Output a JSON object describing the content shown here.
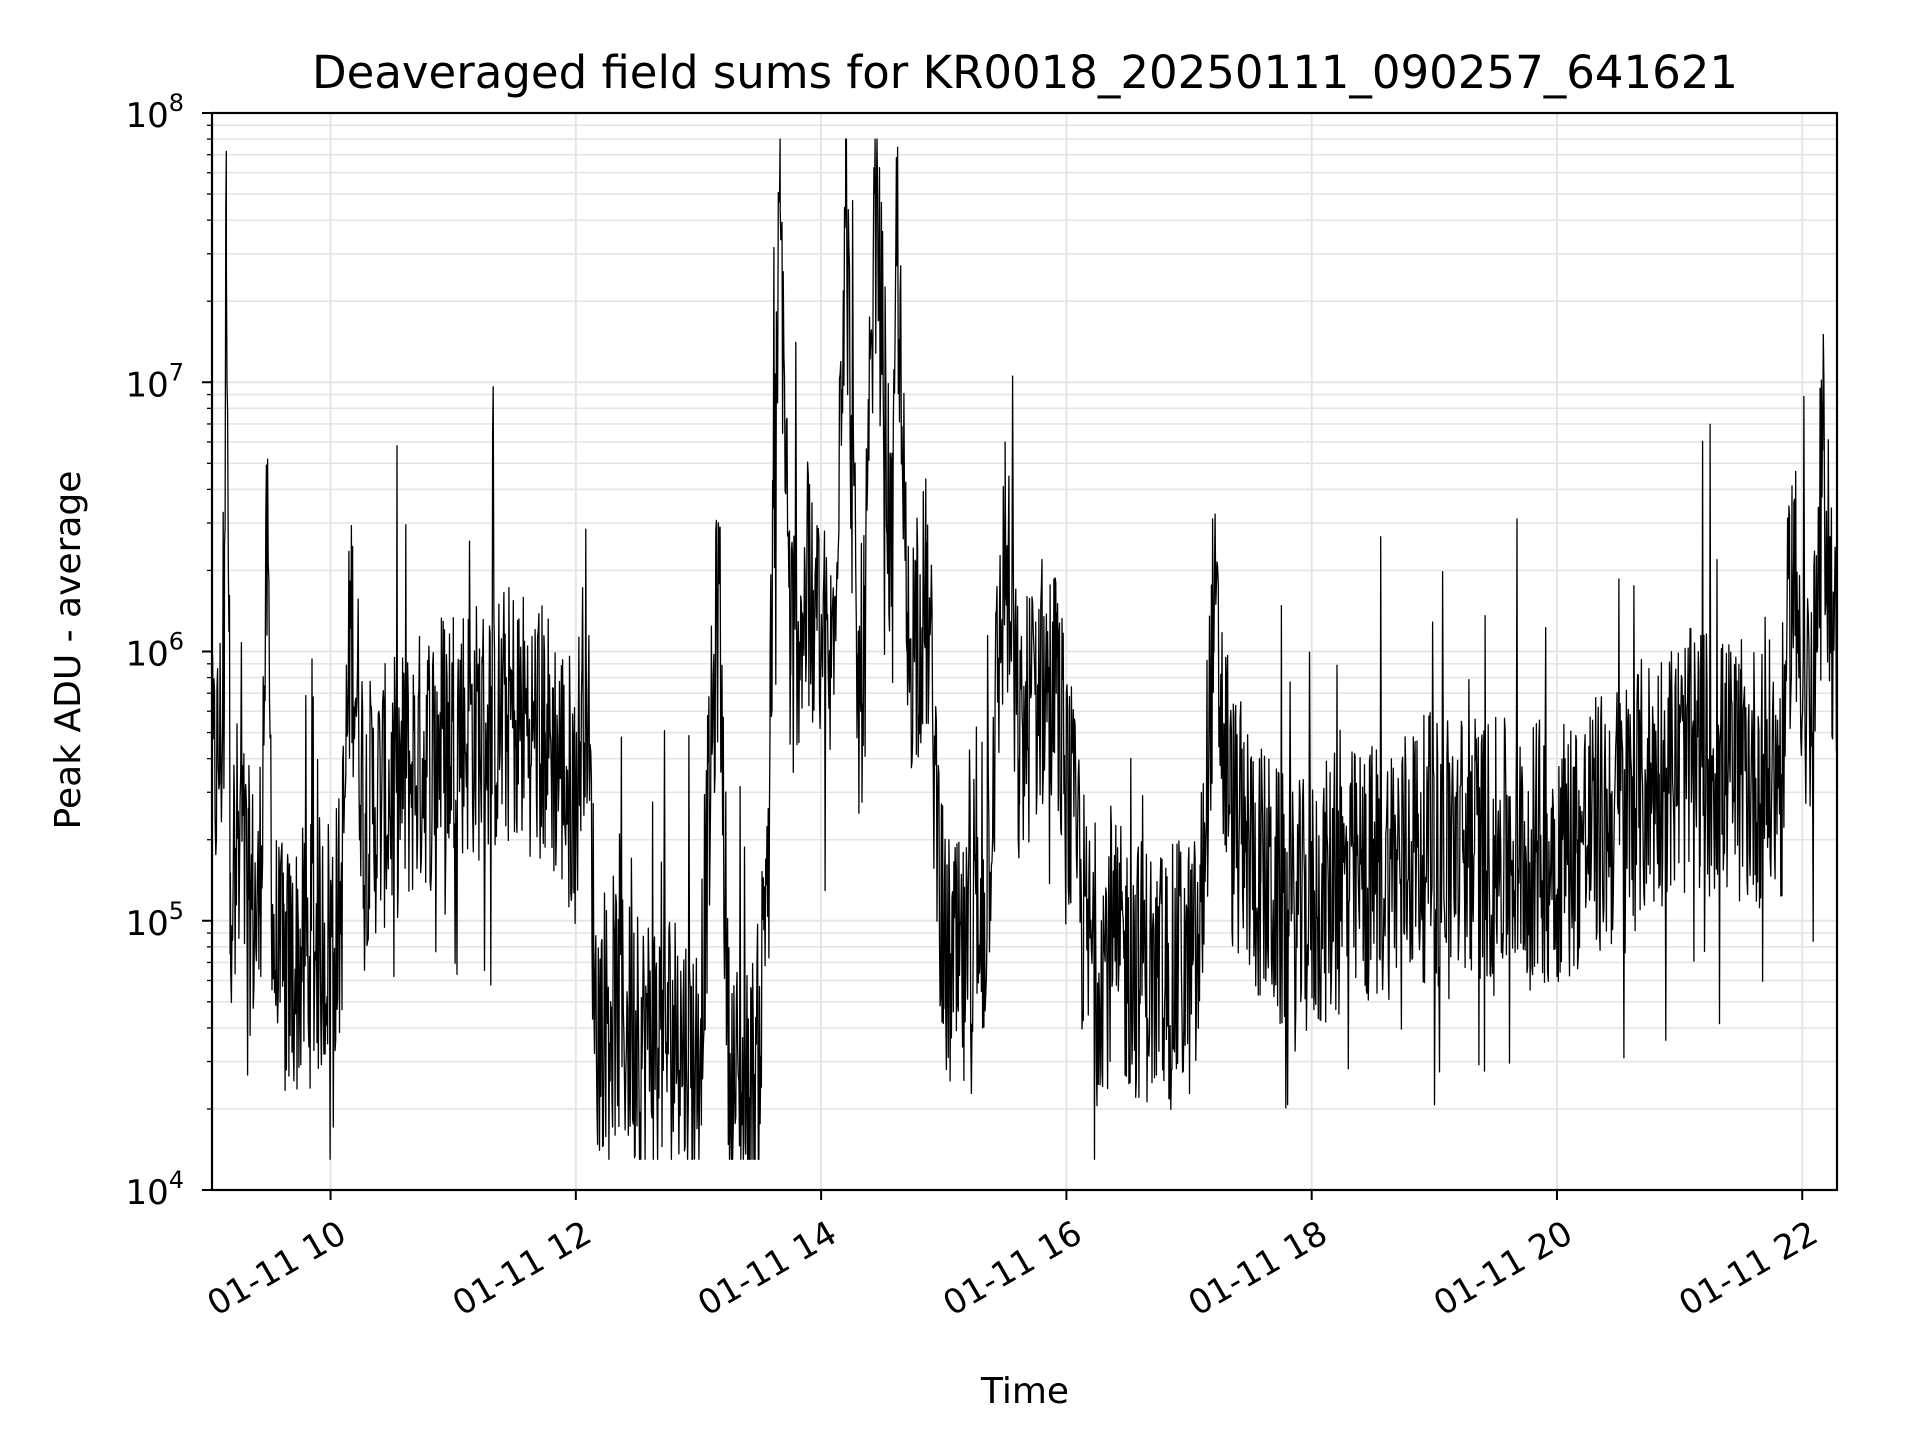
{
  "chart_data": {
    "type": "line",
    "title": "Deaveraged field sums for KR0018_20250111_090257_641621",
    "xlabel": "Time",
    "ylabel": "Peak ADU - average",
    "yscale": "log",
    "ylim": [
      10000,
      100000000
    ],
    "xlim": [
      "2025-01-11 09:02",
      "2025-01-11 22:17"
    ],
    "grid": true,
    "line_color": "#000000",
    "grid_color": "#e5e5e5",
    "x_ticks": [
      {
        "value": "2025-01-11 10:00",
        "label": "01-11 10"
      },
      {
        "value": "2025-01-11 12:00",
        "label": "01-11 12"
      },
      {
        "value": "2025-01-11 14:00",
        "label": "01-11 14"
      },
      {
        "value": "2025-01-11 16:00",
        "label": "01-11 16"
      },
      {
        "value": "2025-01-11 18:00",
        "label": "01-11 18"
      },
      {
        "value": "2025-01-11 20:00",
        "label": "01-11 20"
      },
      {
        "value": "2025-01-11 22:00",
        "label": "01-11 22"
      }
    ],
    "y_ticks": [
      {
        "value": 10000,
        "base": "10",
        "exp": "4"
      },
      {
        "value": 100000,
        "base": "10",
        "exp": "5"
      },
      {
        "value": 1000000,
        "base": "10",
        "exp": "6"
      },
      {
        "value": 10000000,
        "base": "10",
        "exp": "7"
      },
      {
        "value": 100000000,
        "base": "10",
        "exp": "8"
      }
    ],
    "series": [
      {
        "x": [
          "2025-01-11 09:02",
          "2025-01-11 09:05",
          "2025-01-11 09:08",
          "2025-01-11 09:09",
          "2025-01-11 09:11",
          "2025-01-11 09:15",
          "2025-01-11 09:20",
          "2025-01-11 09:25",
          "2025-01-11 09:29",
          "2025-01-11 09:32",
          "2025-01-11 09:37",
          "2025-01-11 09:45",
          "2025-01-11 09:55",
          "2025-01-11 10:05",
          "2025-01-11 10:10",
          "2025-01-11 10:17",
          "2025-01-11 10:30",
          "2025-01-11 10:45",
          "2025-01-11 11:00",
          "2025-01-11 11:15",
          "2025-01-11 11:30",
          "2025-01-11 11:45",
          "2025-01-11 12:00",
          "2025-01-11 12:05",
          "2025-01-11 12:10",
          "2025-01-11 12:17",
          "2025-01-11 12:30",
          "2025-01-11 12:45",
          "2025-01-11 13:00",
          "2025-01-11 13:10",
          "2025-01-11 13:15",
          "2025-01-11 13:25",
          "2025-01-11 13:30",
          "2025-01-11 13:35",
          "2025-01-11 13:40",
          "2025-01-11 13:45",
          "2025-01-11 13:50",
          "2025-01-11 13:58",
          "2025-01-11 14:05",
          "2025-01-11 14:12",
          "2025-01-11 14:18",
          "2025-01-11 14:21",
          "2025-01-11 14:27",
          "2025-01-11 14:35",
          "2025-01-11 14:37",
          "2025-01-11 14:42",
          "2025-01-11 14:52",
          "2025-01-11 15:00",
          "2025-01-11 15:10",
          "2025-01-11 15:20",
          "2025-01-11 15:30",
          "2025-01-11 15:37",
          "2025-01-11 15:45",
          "2025-01-11 15:55",
          "2025-01-11 16:10",
          "2025-01-11 16:30",
          "2025-01-11 16:50",
          "2025-01-11 17:05",
          "2025-01-11 17:12",
          "2025-01-11 17:20",
          "2025-01-11 17:35",
          "2025-01-11 17:50",
          "2025-01-11 18:10",
          "2025-01-11 18:30",
          "2025-01-11 18:50",
          "2025-01-11 19:10",
          "2025-01-11 19:30",
          "2025-01-11 19:50",
          "2025-01-11 20:10",
          "2025-01-11 20:30",
          "2025-01-11 20:50",
          "2025-01-11 21:10",
          "2025-01-11 21:30",
          "2025-01-11 21:50",
          "2025-01-11 21:55",
          "2025-01-11 22:05",
          "2025-01-11 22:10",
          "2025-01-11 22:17"
        ],
        "y": [
          300000,
          400000,
          600000,
          72000000,
          150000,
          200000,
          120000,
          100000,
          2200000,
          80000,
          60000,
          70000,
          80000,
          100000,
          1400000,
          250000,
          300000,
          400000,
          550000,
          500000,
          600000,
          500000,
          300000,
          1000000,
          40000,
          50000,
          35000,
          40000,
          30000,
          1800000,
          25000,
          22000,
          35000,
          500000,
          44000000,
          1000000,
          1500000,
          1200000,
          800000,
          47000000,
          600000,
          1000000,
          48000000,
          1500000,
          44000000,
          1000000,
          1500000,
          70000,
          60000,
          100000,
          2400000,
          400000,
          800000,
          700000,
          80000,
          70000,
          60000,
          70000,
          1300000,
          250000,
          150000,
          100000,
          130000,
          150000,
          180000,
          200000,
          180000,
          180000,
          200000,
          250000,
          350000,
          400000,
          350000,
          350000,
          2300000,
          500000,
          5600000,
          700000
        ]
      }
    ]
  }
}
